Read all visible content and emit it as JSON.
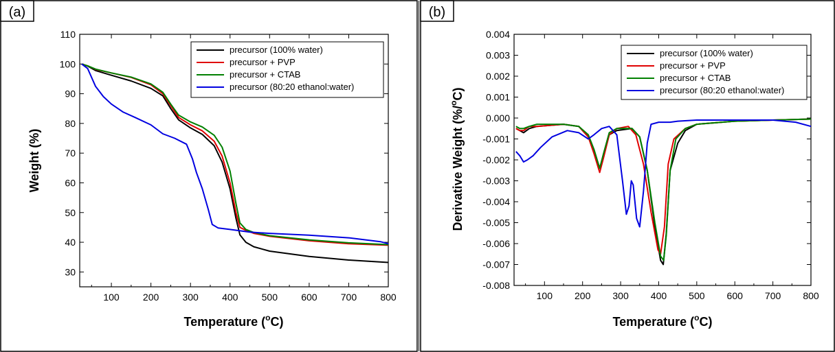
{
  "chart_data": [
    {
      "panel_label": "(a)",
      "type": "line",
      "xlabel": "Temperature (",
      "xlabel_unit": "C)",
      "xlabel_sup": "o",
      "ylabel": "Weight (%)",
      "xlim": [
        20,
        800
      ],
      "ylim": [
        25,
        110
      ],
      "xticks": [
        100,
        200,
        300,
        400,
        500,
        600,
        700,
        800
      ],
      "yticks": [
        30,
        40,
        50,
        60,
        70,
        80,
        90,
        100,
        110
      ],
      "legend_position": "top-right",
      "series": [
        {
          "name": "precursor (100% water)",
          "color": "#000000",
          "points": [
            [
              25,
              100
            ],
            [
              40,
              99.3
            ],
            [
              60,
              97.8
            ],
            [
              100,
              96.2
            ],
            [
              150,
              94.3
            ],
            [
              200,
              91.8
            ],
            [
              230,
              89.3
            ],
            [
              250,
              85
            ],
            [
              270,
              81.2
            ],
            [
              300,
              78.5
            ],
            [
              330,
              76.3
            ],
            [
              360,
              72.5
            ],
            [
              380,
              67
            ],
            [
              400,
              58
            ],
            [
              415,
              48
            ],
            [
              425,
              42.5
            ],
            [
              440,
              40
            ],
            [
              460,
              38.5
            ],
            [
              500,
              37
            ],
            [
              600,
              35.2
            ],
            [
              700,
              34
            ],
            [
              800,
              33.2
            ]
          ]
        },
        {
          "name": "precursor + PVP",
          "color": "#e00000",
          "points": [
            [
              25,
              100
            ],
            [
              40,
              99.4
            ],
            [
              60,
              98.2
            ],
            [
              100,
              97
            ],
            [
              150,
              95.5
            ],
            [
              200,
              93
            ],
            [
              230,
              90
            ],
            [
              250,
              86
            ],
            [
              270,
              82
            ],
            [
              300,
              79.5
            ],
            [
              330,
              77.5
            ],
            [
              360,
              74
            ],
            [
              380,
              69
            ],
            [
              400,
              60
            ],
            [
              415,
              50
            ],
            [
              425,
              45
            ],
            [
              440,
              44
            ],
            [
              460,
              43
            ],
            [
              500,
              42
            ],
            [
              600,
              40.5
            ],
            [
              700,
              39.5
            ],
            [
              800,
              39
            ]
          ]
        },
        {
          "name": "precursor + CTAB",
          "color": "#008000",
          "points": [
            [
              25,
              100
            ],
            [
              40,
              99.4
            ],
            [
              60,
              98.3
            ],
            [
              100,
              97
            ],
            [
              150,
              95.6
            ],
            [
              200,
              93.3
            ],
            [
              230,
              90.5
            ],
            [
              250,
              86.5
            ],
            [
              270,
              82.8
            ],
            [
              300,
              80.5
            ],
            [
              330,
              78.8
            ],
            [
              360,
              76
            ],
            [
              380,
              72
            ],
            [
              400,
              64
            ],
            [
              415,
              53
            ],
            [
              425,
              46.5
            ],
            [
              440,
              44.3
            ],
            [
              460,
              43.3
            ],
            [
              500,
              42.2
            ],
            [
              600,
              40.8
            ],
            [
              700,
              39.8
            ],
            [
              800,
              39.2
            ]
          ]
        },
        {
          "name": "precursor (80:20 ethanol:water)",
          "color": "#0000e0",
          "points": [
            [
              25,
              100
            ],
            [
              40,
              98.5
            ],
            [
              60,
              92.5
            ],
            [
              80,
              89
            ],
            [
              100,
              86.5
            ],
            [
              130,
              83.8
            ],
            [
              160,
              82
            ],
            [
              200,
              79.5
            ],
            [
              230,
              76.5
            ],
            [
              260,
              75
            ],
            [
              290,
              73
            ],
            [
              305,
              68
            ],
            [
              315,
              63.5
            ],
            [
              330,
              58
            ],
            [
              345,
              51
            ],
            [
              355,
              46
            ],
            [
              370,
              44.8
            ],
            [
              400,
              44.3
            ],
            [
              450,
              43.4
            ],
            [
              500,
              43
            ],
            [
              600,
              42.4
            ],
            [
              700,
              41.5
            ],
            [
              780,
              40.2
            ],
            [
              800,
              39.5
            ]
          ]
        }
      ]
    },
    {
      "panel_label": "(b)",
      "type": "line",
      "xlabel": "Temperature (",
      "xlabel_unit": "C)",
      "xlabel_sup": "o",
      "ylabel": "Derivative Weight (%/",
      "ylabel_unit": "C)",
      "ylabel_sup": "o",
      "xlim": [
        20,
        800
      ],
      "ylim": [
        -0.008,
        0.004
      ],
      "xticks": [
        100,
        200,
        300,
        400,
        500,
        600,
        700,
        800
      ],
      "yticks": [
        -0.008,
        -0.007,
        -0.006,
        -0.005,
        -0.004,
        -0.003,
        -0.002,
        -0.001,
        0.0,
        0.001,
        0.002,
        0.003,
        0.004
      ],
      "ytick_labels": [
        "-0.008",
        "-0.007",
        "-0.006",
        "-0.005",
        "-0.004",
        "-0.003",
        "-0.002",
        "-0.001",
        "0.000",
        "0.001",
        "0.002",
        "0.003",
        "0.004"
      ],
      "legend_position": "top-right",
      "series": [
        {
          "name": "precursor (100% water)",
          "color": "#000000",
          "points": [
            [
              25,
              -0.0005
            ],
            [
              35,
              -0.0006
            ],
            [
              45,
              -0.0007
            ],
            [
              60,
              -0.0005
            ],
            [
              80,
              -0.0004
            ],
            [
              150,
              -0.0003
            ],
            [
              190,
              -0.0004
            ],
            [
              215,
              -0.0009
            ],
            [
              230,
              -0.0016
            ],
            [
              245,
              -0.0024
            ],
            [
              255,
              -0.0018
            ],
            [
              270,
              -0.0008
            ],
            [
              290,
              -0.0006
            ],
            [
              330,
              -0.0005
            ],
            [
              350,
              -0.0009
            ],
            [
              370,
              -0.0025
            ],
            [
              390,
              -0.0052
            ],
            [
              405,
              -0.0068
            ],
            [
              412,
              -0.007
            ],
            [
              420,
              -0.0055
            ],
            [
              430,
              -0.0025
            ],
            [
              450,
              -0.0012
            ],
            [
              470,
              -0.0006
            ],
            [
              500,
              -0.0003
            ],
            [
              600,
              -0.00015
            ],
            [
              700,
              -0.0001
            ],
            [
              800,
              -5e-05
            ]
          ]
        },
        {
          "name": "precursor + PVP",
          "color": "#e00000",
          "points": [
            [
              25,
              -0.0005
            ],
            [
              35,
              -0.0006
            ],
            [
              45,
              -0.0006
            ],
            [
              60,
              -0.0004
            ],
            [
              80,
              -0.0004
            ],
            [
              150,
              -0.0003
            ],
            [
              190,
              -0.0004
            ],
            [
              215,
              -0.0009
            ],
            [
              230,
              -0.0017
            ],
            [
              245,
              -0.0026
            ],
            [
              255,
              -0.0019
            ],
            [
              270,
              -0.0008
            ],
            [
              290,
              -0.0005
            ],
            [
              320,
              -0.0004
            ],
            [
              340,
              -0.0008
            ],
            [
              360,
              -0.0022
            ],
            [
              380,
              -0.0045
            ],
            [
              398,
              -0.0063
            ],
            [
              405,
              -0.0065
            ],
            [
              415,
              -0.0052
            ],
            [
              425,
              -0.0022
            ],
            [
              440,
              -0.001
            ],
            [
              470,
              -0.0005
            ],
            [
              500,
              -0.0003
            ],
            [
              600,
              -0.00015
            ],
            [
              700,
              -0.0001
            ],
            [
              800,
              -5e-05
            ]
          ]
        },
        {
          "name": "precursor + CTAB",
          "color": "#008000",
          "points": [
            [
              25,
              -0.0004
            ],
            [
              35,
              -0.0005
            ],
            [
              45,
              -0.0005
            ],
            [
              60,
              -0.0004
            ],
            [
              80,
              -0.0003
            ],
            [
              150,
              -0.0003
            ],
            [
              190,
              -0.0004
            ],
            [
              215,
              -0.0008
            ],
            [
              230,
              -0.0015
            ],
            [
              245,
              -0.0024
            ],
            [
              255,
              -0.0017
            ],
            [
              270,
              -0.0007
            ],
            [
              290,
              -0.0005
            ],
            [
              330,
              -0.0005
            ],
            [
              350,
              -0.0009
            ],
            [
              370,
              -0.0025
            ],
            [
              390,
              -0.005
            ],
            [
              405,
              -0.0066
            ],
            [
              413,
              -0.0068
            ],
            [
              420,
              -0.0056
            ],
            [
              430,
              -0.0025
            ],
            [
              445,
              -0.001
            ],
            [
              470,
              -0.0005
            ],
            [
              500,
              -0.0003
            ],
            [
              600,
              -0.00015
            ],
            [
              700,
              -0.0001
            ],
            [
              800,
              -5e-05
            ]
          ]
        },
        {
          "name": "precursor (80:20 ethanol:water)",
          "color": "#0000e0",
          "points": [
            [
              25,
              -0.0016
            ],
            [
              35,
              -0.0018
            ],
            [
              45,
              -0.0021
            ],
            [
              55,
              -0.002
            ],
            [
              70,
              -0.0018
            ],
            [
              90,
              -0.0014
            ],
            [
              120,
              -0.0009
            ],
            [
              160,
              -0.0006
            ],
            [
              190,
              -0.0007
            ],
            [
              215,
              -0.001
            ],
            [
              230,
              -0.0008
            ],
            [
              250,
              -0.0005
            ],
            [
              270,
              -0.0004
            ],
            [
              290,
              -0.0008
            ],
            [
              305,
              -0.003
            ],
            [
              315,
              -0.0046
            ],
            [
              322,
              -0.0042
            ],
            [
              328,
              -0.003
            ],
            [
              333,
              -0.0032
            ],
            [
              342,
              -0.0048
            ],
            [
              350,
              -0.0052
            ],
            [
              360,
              -0.0035
            ],
            [
              370,
              -0.0012
            ],
            [
              380,
              -0.0003
            ],
            [
              400,
              -0.0002
            ],
            [
              430,
              -0.0002
            ],
            [
              450,
              -0.00015
            ],
            [
              500,
              -0.0001
            ],
            [
              600,
              -0.0001
            ],
            [
              700,
              -0.0001
            ],
            [
              760,
              -0.0002
            ],
            [
              800,
              -0.0004
            ]
          ]
        }
      ]
    }
  ]
}
